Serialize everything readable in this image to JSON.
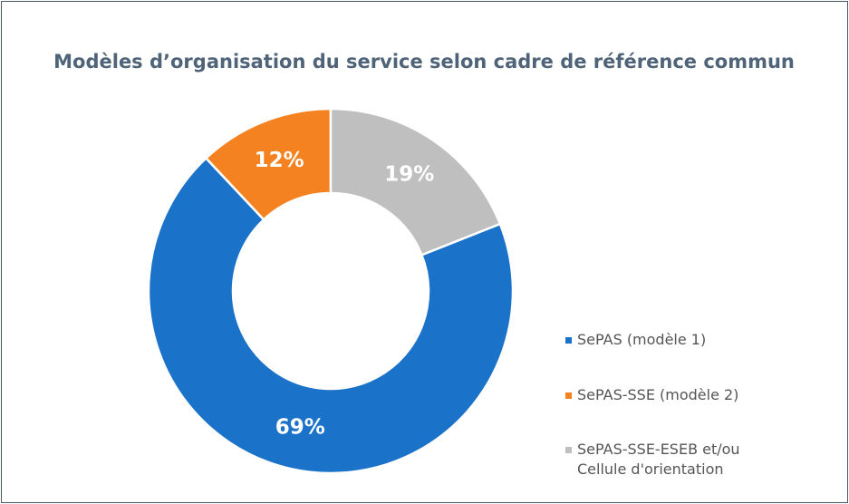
{
  "chart_data": {
    "type": "pie",
    "title": "Modèles d’organisation du service selon cadre de référence commun",
    "categories": [
      "SePAS (modèle 1)",
      "SePAS-SSE (modèle 2)",
      "SePAS-SSE-ESEB et/ou Cellule d'orientation"
    ],
    "values": [
      69,
      12,
      19
    ],
    "value_labels": [
      "69%",
      "12%",
      "19%"
    ],
    "colors": [
      "#1b72c9",
      "#f58220",
      "#bfbfbf"
    ],
    "donut": true,
    "legend": "right"
  }
}
